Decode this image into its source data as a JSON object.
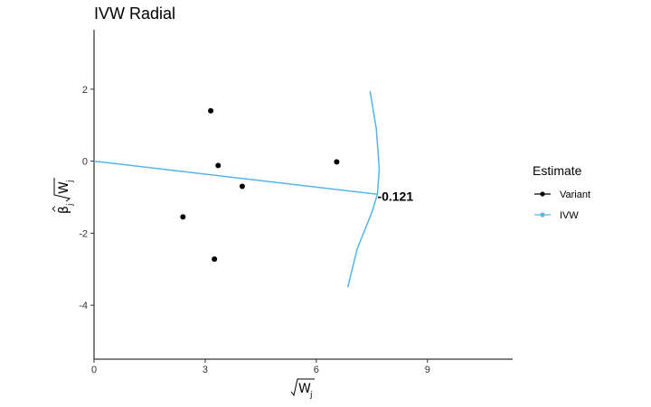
{
  "chart_data": {
    "type": "scatter",
    "title": "IVW Radial",
    "xlabel": "√W j",
    "ylabel": "β̂ j √W j",
    "xlim": [
      0,
      11.3
    ],
    "ylim": [
      -5.5,
      3.65
    ],
    "x_ticks": [
      0,
      3,
      6,
      9
    ],
    "y_ticks": [
      2,
      0,
      -2,
      -4
    ],
    "x_tick_labels": [
      "0",
      "3",
      "6",
      "9"
    ],
    "y_tick_labels": [
      "2",
      "0",
      "-2",
      "-4"
    ],
    "grid": false,
    "legend_position": "right",
    "legend": {
      "title": "Estimate",
      "entries": [
        {
          "label": "Variant",
          "color": "#000000"
        },
        {
          "label": "IVW",
          "color": "#56B4E9"
        }
      ]
    },
    "series": [
      {
        "name": "Variant",
        "kind": "points",
        "color": "#000000",
        "points": [
          {
            "x": 3.15,
            "y": 1.4
          },
          {
            "x": 3.35,
            "y": -0.12
          },
          {
            "x": 4.0,
            "y": -0.7
          },
          {
            "x": 6.55,
            "y": -0.02
          },
          {
            "x": 2.4,
            "y": -1.55
          },
          {
            "x": 3.25,
            "y": -2.72
          }
        ]
      },
      {
        "name": "IVW",
        "kind": "line",
        "color": "#56B4E9",
        "points": [
          {
            "x": 0,
            "y": 0
          },
          {
            "x": 7.65,
            "y": -0.92
          }
        ]
      },
      {
        "name": "IVW",
        "kind": "arc",
        "color": "#56B4E9",
        "points": [
          {
            "x": 7.45,
            "y": 1.95
          },
          {
            "x": 7.62,
            "y": 0.9
          },
          {
            "x": 7.7,
            "y": -0.22
          },
          {
            "x": 7.65,
            "y": -0.92
          },
          {
            "x": 7.5,
            "y": -1.42
          },
          {
            "x": 7.1,
            "y": -2.45
          },
          {
            "x": 6.85,
            "y": -3.5
          }
        ]
      }
    ],
    "annotations": [
      {
        "text": "-0.121",
        "x": 7.65,
        "y": -0.97
      }
    ]
  }
}
